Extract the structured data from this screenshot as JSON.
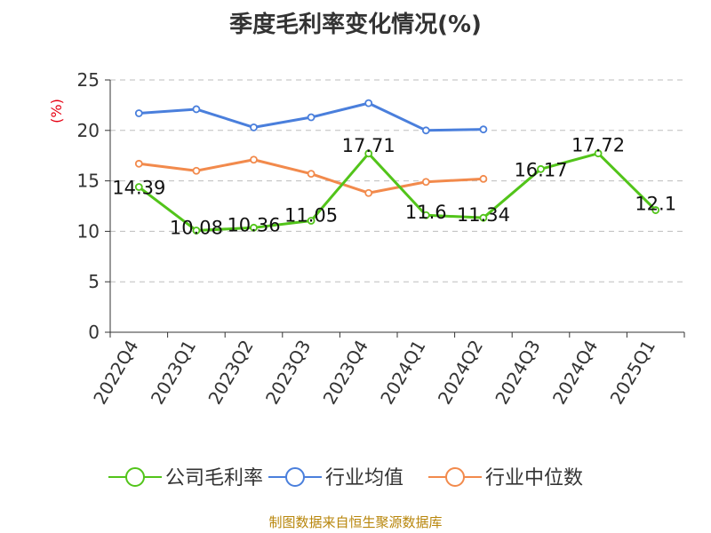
{
  "chart_data": {
    "type": "line",
    "title": "季度毛利率变化情况(%)",
    "ylabel": "(%)",
    "xlabel": "",
    "categories": [
      "2022Q4",
      "2023Q1",
      "2023Q2",
      "2023Q3",
      "2023Q4",
      "2024Q1",
      "2024Q2",
      "2024Q3",
      "2024Q4",
      "2025Q1"
    ],
    "ylim": [
      0,
      25
    ],
    "yticks": [
      "0",
      "5",
      "10",
      "15",
      "20",
      "25"
    ],
    "grid": true,
    "legend_position": "bottom",
    "series": [
      {
        "name": "公司毛利率",
        "color": "#52c41a",
        "values": [
          14.39,
          10.08,
          10.36,
          11.05,
          17.71,
          11.6,
          11.34,
          16.17,
          17.72,
          12.1
        ],
        "labels": [
          "14.39",
          "10.08",
          "10.36",
          "11.05",
          "17.71",
          "11.6",
          "11.34",
          "16.17",
          "17.72",
          "12.1"
        ]
      },
      {
        "name": "行业均值",
        "color": "#4a7fdc",
        "values": [
          21.7,
          22.1,
          20.3,
          21.3,
          22.7,
          20.0,
          20.1,
          null,
          null,
          null
        ]
      },
      {
        "name": "行业中位数",
        "color": "#f28a4c",
        "values": [
          16.7,
          16.0,
          17.1,
          15.7,
          13.8,
          14.9,
          15.2,
          null,
          null,
          null
        ]
      }
    ]
  },
  "source": "制图数据来自恒生聚源数据库"
}
